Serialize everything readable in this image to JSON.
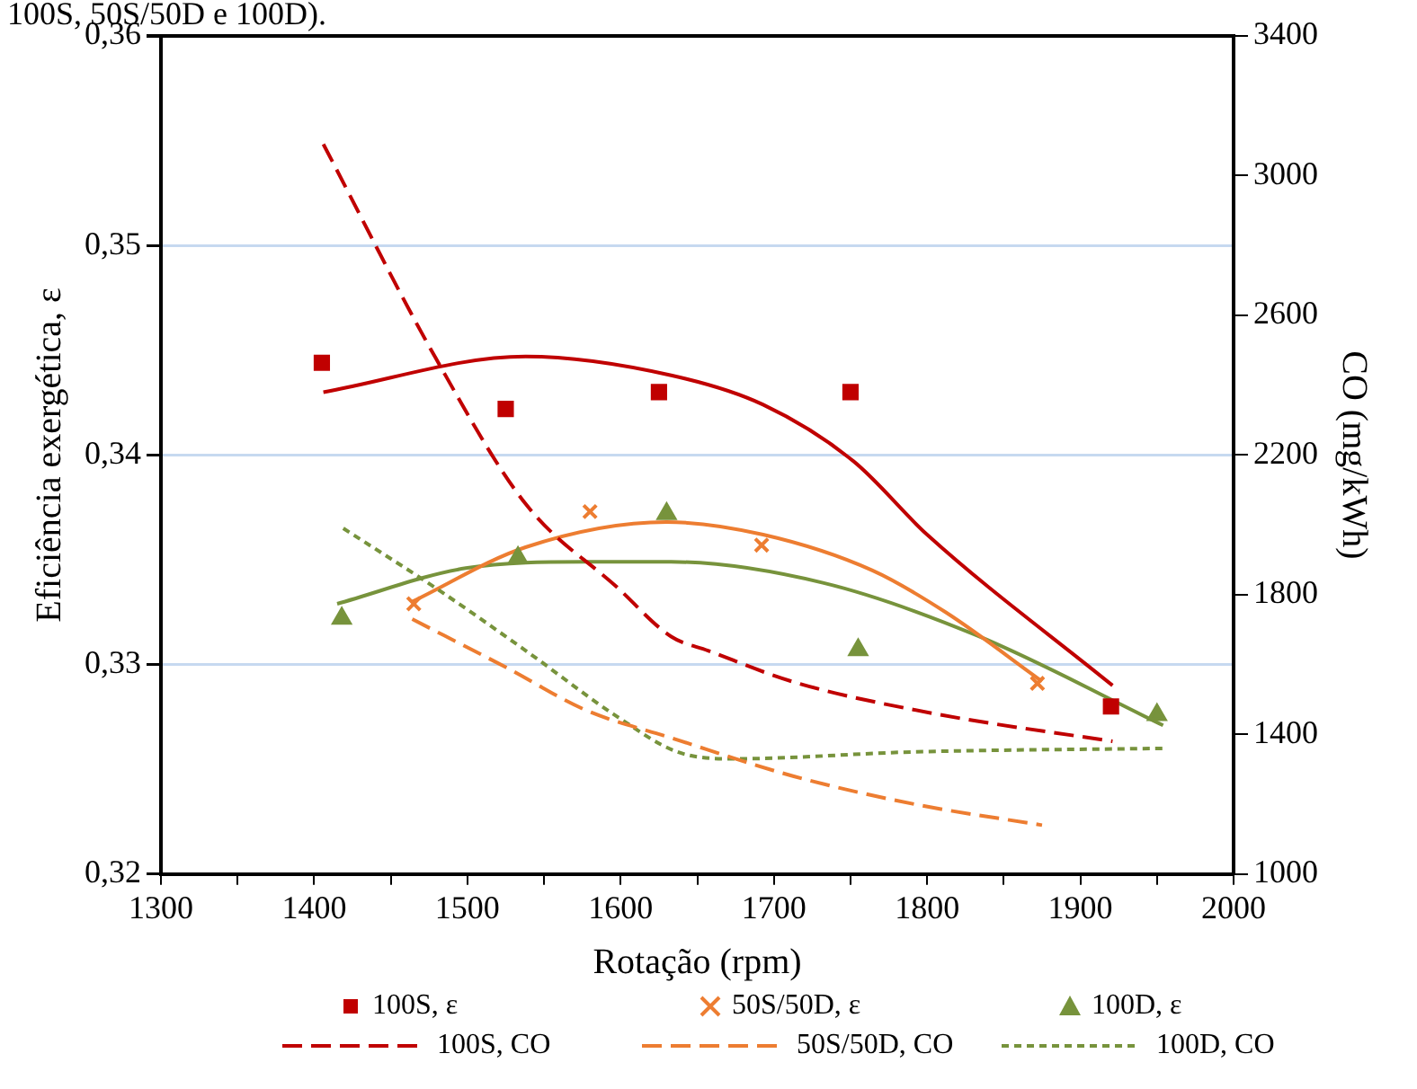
{
  "chart_data": {
    "type": "scatter",
    "annotations": [
      "100S, 50S/50D e 100D)."
    ],
    "xlabel": "Rotação (rpm)",
    "ylabel": "Eficiência exergética, ε",
    "y2label": "CO (mg/kWh)",
    "xlim": [
      1300,
      2000
    ],
    "xticks": [
      1300,
      {
        "value": 1350,
        "label": null
      },
      1400,
      {
        "value": 1450,
        "label": null
      },
      1500,
      {
        "value": 1550,
        "label": null
      },
      1600,
      {
        "value": 1650,
        "label": null
      },
      1700,
      {
        "value": 1750,
        "label": null
      },
      1800,
      {
        "value": 1850,
        "label": null
      },
      1900,
      {
        "value": 1950,
        "label": null
      },
      2000
    ],
    "ylim": [
      0.32,
      0.36
    ],
    "yticks": [
      {
        "value": 0.32,
        "label": "0,32"
      },
      {
        "value": 0.33,
        "label": "0,33"
      },
      {
        "value": 0.34,
        "label": "0,34"
      },
      {
        "value": 0.35,
        "label": "0,35"
      },
      {
        "value": 0.36,
        "label": "0,36"
      }
    ],
    "y2lim": [
      1000,
      3400
    ],
    "y2ticks": [
      1000,
      1400,
      1800,
      2200,
      2600,
      3000,
      3400
    ],
    "grid": "y",
    "legend": "bottom",
    "series": [
      {
        "name": "100S, ε",
        "marker": "square",
        "color": "#c00000",
        "x": [
          1405,
          1525,
          1625,
          1750,
          1920
        ],
        "values": [
          0.3444,
          0.3422,
          0.343,
          0.343,
          0.328
        ]
      },
      {
        "name": "50S/50D, ε",
        "marker": "cross",
        "color": "#ed7d31",
        "x": [
          1465,
          1580,
          1692,
          1872
        ],
        "values": [
          0.3329,
          0.3373,
          0.3357,
          0.3291
        ]
      },
      {
        "name": "100D, ε",
        "marker": "triangle",
        "color": "#77933c",
        "x": [
          1418,
          1533,
          1630,
          1755,
          1950
        ],
        "values": [
          0.3322,
          0.3351,
          0.3372,
          0.3307,
          0.3276
        ]
      },
      {
        "name": "100S, CO",
        "type": "line",
        "line_style": "dashed",
        "axis": "y2",
        "color": "#c00000",
        "x": [
          1406,
          1479,
          1538,
          1598,
          1633,
          1657,
          1713,
          1804,
          1921
        ],
        "values": [
          3090,
          2480,
          2060,
          1820,
          1680,
          1640,
          1550,
          1460,
          1380
        ]
      },
      {
        "name": "50S/50D, CO",
        "type": "line",
        "line_style": "dashed",
        "axis": "y2",
        "color": "#ed7d31",
        "x": [
          1464,
          1526,
          1577,
          1633,
          1713,
          1792,
          1875
        ],
        "values": [
          1730,
          1590,
          1470,
          1390,
          1280,
          1200,
          1140
        ]
      },
      {
        "name": "100D, CO",
        "type": "line",
        "line_style": "dotted",
        "axis": "y2",
        "color": "#77933c",
        "x": [
          1419,
          1479,
          1538,
          1598,
          1637,
          1673,
          1792,
          1954
        ],
        "values": [
          1990,
          1820,
          1640,
          1450,
          1350,
          1330,
          1350,
          1360
        ]
      },
      {
        "type": "line",
        "line_style": "solid",
        "color": "#c00000",
        "x": [
          1406,
          1538,
          1633,
          1693,
          1752,
          1800,
          1921
        ],
        "values": [
          0.343,
          0.3447,
          0.3438,
          0.3424,
          0.3397,
          0.3362,
          0.329
        ]
      },
      {
        "type": "line",
        "line_style": "solid",
        "color": "#ed7d31",
        "x": [
          1464,
          1538,
          1630,
          1693,
          1764,
          1812,
          1875
        ],
        "values": [
          0.333,
          0.3356,
          0.3368,
          0.3362,
          0.3345,
          0.3325,
          0.3292
        ]
      },
      {
        "type": "line",
        "line_style": "solid",
        "color": "#77933c",
        "x": [
          1415,
          1499,
          1577,
          1633,
          1732,
          1832,
          1954
        ],
        "values": [
          0.3329,
          0.3346,
          0.3349,
          0.3349,
          0.3339,
          0.3314,
          0.3271
        ]
      }
    ]
  }
}
